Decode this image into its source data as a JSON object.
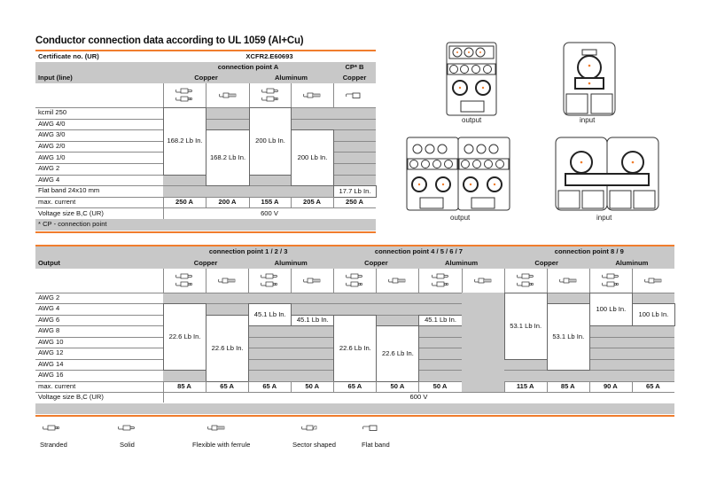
{
  "title": "Conductor connection data according to UL 1059 (Al+Cu)",
  "colors": {
    "accent": "#f07d2d",
    "cell_gray": "#c8c8c8"
  },
  "table_input": {
    "cert_label": "Certificate no. (UR)",
    "cert_value": "XCFR2.E60693",
    "row_header": "Input (line)",
    "groups": [
      {
        "label": "connection point A",
        "span": [
          1,
          4
        ]
      },
      {
        "label": "CP* B",
        "span": [
          5,
          5
        ]
      }
    ],
    "materials": [
      {
        "label": "Copper",
        "span": [
          1,
          2
        ]
      },
      {
        "label": "Aluminum",
        "span": [
          3,
          4
        ]
      },
      {
        "label": "Copper",
        "span": [
          5,
          5
        ]
      }
    ],
    "icons": [
      [
        "solid",
        "stranded"
      ],
      [
        "flex"
      ],
      [
        "solid",
        "stranded"
      ],
      [
        "flex"
      ],
      [
        "flat"
      ]
    ],
    "rows": [
      "kcmil 250",
      "AWG 4/0",
      "AWG 3/0",
      "AWG 2/0",
      "AWG 1/0",
      "AWG 2",
      "AWG 4",
      "Flat band 24x10 mm"
    ],
    "columns": [
      {
        "blocks": [
          {
            "from": 0,
            "to": 5,
            "value": "168.2 Lb In."
          }
        ]
      },
      {
        "blocks": [
          {
            "from": 2,
            "to": 6,
            "value": "168.2 Lb In."
          }
        ]
      },
      {
        "blocks": [
          {
            "from": 0,
            "to": 5,
            "value": "200 Lb In."
          }
        ]
      },
      {
        "blocks": [
          {
            "from": 2,
            "to": 6,
            "value": "200 Lb In."
          }
        ]
      },
      {
        "blocks": [
          {
            "from": 7,
            "to": 7,
            "value": "17.7 Lb In."
          }
        ]
      }
    ],
    "max_current_label": "max. current",
    "max_current": [
      "250 A",
      "200 A",
      "155 A",
      "205 A",
      "250 A"
    ],
    "voltage_label": "Voltage size B,C (UR)",
    "voltage": "600 V",
    "note": "* CP - connection point"
  },
  "table_output": {
    "row_header": "Output",
    "groups": [
      {
        "label": "connection point 1 / 2 / 3",
        "span": [
          1,
          4
        ]
      },
      {
        "label": "connection point 4 / 5 / 6 / 7",
        "span": [
          5,
          8
        ]
      },
      {
        "label": "connection point 8 / 9",
        "span": [
          9,
          12
        ]
      }
    ],
    "materials": [
      {
        "label": "Copper",
        "span": [
          1,
          2
        ]
      },
      {
        "label": "Aluminum",
        "span": [
          3,
          4
        ]
      },
      {
        "label": "Copper",
        "span": [
          5,
          6
        ]
      },
      {
        "label": "Aluminum",
        "span": [
          7,
          8
        ]
      },
      {
        "label": "Copper",
        "span": [
          9,
          10
        ]
      },
      {
        "label": "Aluminum",
        "span": [
          11,
          12
        ]
      }
    ],
    "icons": [
      [
        "solid",
        "stranded"
      ],
      [
        "flex"
      ],
      [
        "solid",
        "stranded"
      ],
      [
        "flex"
      ],
      [
        "solid",
        "stranded"
      ],
      [
        "flex"
      ],
      [
        "solid",
        "stranded"
      ],
      [
        "flex"
      ],
      [
        "solid",
        "stranded"
      ],
      [
        "flex"
      ],
      [
        "solid",
        "stranded"
      ],
      [
        "flex"
      ]
    ],
    "rows": [
      "AWG 2",
      "AWG 4",
      "AWG 6",
      "AWG 8",
      "AWG 10",
      "AWG 12",
      "AWG 14",
      "AWG 16"
    ],
    "columns": [
      {
        "blocks": [
          {
            "from": 1,
            "to": 6,
            "value": "22.6 Lb In."
          }
        ]
      },
      {
        "blocks": [
          {
            "from": 2,
            "to": 7,
            "value": "22.6 Lb In."
          }
        ]
      },
      {
        "blocks": [
          {
            "from": 1,
            "to": 2,
            "value": "45.1 Lb In."
          }
        ]
      },
      {
        "blocks": [
          {
            "from": 2,
            "to": 2,
            "value": "45.1 Lb In."
          }
        ]
      },
      {
        "blocks": [
          {
            "from": 2,
            "to": 7,
            "value": "22.6 Lb In."
          }
        ]
      },
      {
        "blocks": [
          {
            "from": 3,
            "to": 7,
            "value": "22.6 Lb In."
          }
        ]
      },
      {
        "blocks": [
          {
            "from": 2,
            "to": 2,
            "value": "45.1 Lb In."
          }
        ]
      },
      {
        "blocks": []
      },
      {
        "blocks": [
          {
            "from": 0,
            "to": 5,
            "value": "53.1 Lb In."
          }
        ]
      },
      {
        "blocks": [
          {
            "from": 1,
            "to": 6,
            "value": "53.1 Lb In."
          }
        ]
      },
      {
        "blocks": [
          {
            "from": 0,
            "to": 2,
            "value": "100 Lb In."
          }
        ]
      },
      {
        "blocks": [
          {
            "from": 1,
            "to": 2,
            "value": "100 Lb In."
          }
        ]
      }
    ],
    "max_current_label": "max. current",
    "max_current": [
      "85 A",
      "65 A",
      "65 A",
      "50 A",
      "65 A",
      "50 A",
      "50 A",
      null,
      "115 A",
      "85 A",
      "90 A",
      "65 A"
    ],
    "voltage_label": "Voltage size B,C (UR)",
    "voltage": "600 V"
  },
  "images": {
    "output_small": "output",
    "input_small": "input",
    "output_large": "output",
    "input_large": "input"
  },
  "legend": [
    {
      "icon": "stranded",
      "label": "Stranded"
    },
    {
      "icon": "solid",
      "label": "Solid"
    },
    {
      "icon": "flex",
      "label": "Flexible with ferrule"
    },
    {
      "icon": "sector",
      "label": "Sector shaped"
    },
    {
      "icon": "flat",
      "label": "Flat band"
    }
  ]
}
